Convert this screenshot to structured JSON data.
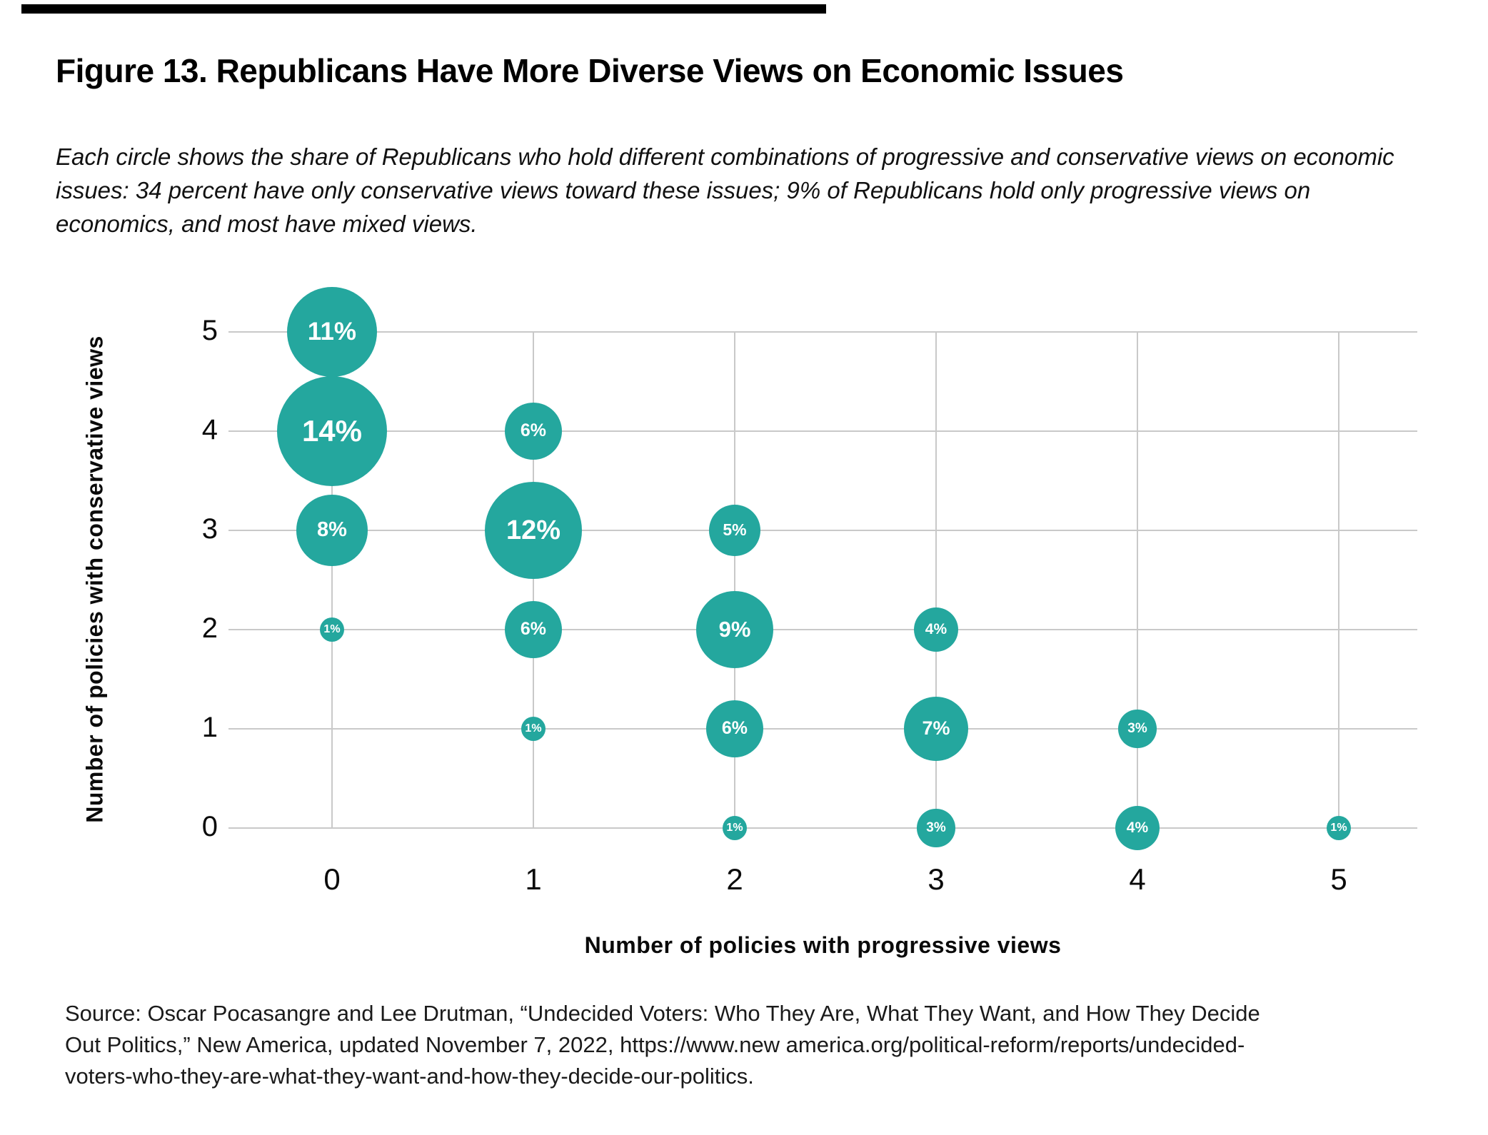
{
  "page": {
    "title": "Figure 13. Republicans Have More Diverse Views on Economic Issues",
    "subtitle_lines": [
      "Each circle shows the share of Republicans who hold different combinations of progressive and conservative views on economic",
      "issues: 34 percent have only conservative views toward these issues; 9% of Republicans hold only progressive views on",
      "economics, and most have mixed views."
    ],
    "source_lines": [
      "Source: Oscar Pocasangre and Lee Drutman, “Undecided Voters: Who They Are, What They Want, and How They Decide",
      "Out Politics,” New America, updated November 7, 2022, https://www.new america.org/political-reform/reports/undecided-",
      "voters-who-they-are-what-they-want-and-how-they-decide-our-politics."
    ]
  },
  "chart_data": {
    "type": "scatter",
    "subtype": "bubble",
    "title": "",
    "xlabel": "Number of policies with progressive views",
    "ylabel": "Number of policies with conservative views",
    "x_ticks": [
      "0",
      "1",
      "2",
      "3",
      "4",
      "5"
    ],
    "y_ticks": [
      "0",
      "1",
      "2",
      "3",
      "4",
      "5"
    ],
    "xlim": [
      0,
      5
    ],
    "ylim": [
      0,
      5
    ],
    "grid": true,
    "legend": "none",
    "value_unit": "percent of Republicans",
    "points": [
      {
        "x": 0,
        "y": 5,
        "value": 11,
        "label": "11%"
      },
      {
        "x": 0,
        "y": 4,
        "value": 14,
        "label": "14%"
      },
      {
        "x": 0,
        "y": 3,
        "value": 8,
        "label": "8%"
      },
      {
        "x": 0,
        "y": 2,
        "value": 1,
        "label": "1%"
      },
      {
        "x": 1,
        "y": 4,
        "value": 6,
        "label": "6%"
      },
      {
        "x": 1,
        "y": 3,
        "value": 12,
        "label": "12%"
      },
      {
        "x": 1,
        "y": 2,
        "value": 6,
        "label": "6%"
      },
      {
        "x": 1,
        "y": 1,
        "value": 1,
        "label": "1%"
      },
      {
        "x": 2,
        "y": 3,
        "value": 5,
        "label": "5%"
      },
      {
        "x": 2,
        "y": 2,
        "value": 9,
        "label": "9%"
      },
      {
        "x": 2,
        "y": 1,
        "value": 6,
        "label": "6%"
      },
      {
        "x": 2,
        "y": 0,
        "value": 1,
        "label": "1%"
      },
      {
        "x": 3,
        "y": 2,
        "value": 4,
        "label": "4%"
      },
      {
        "x": 3,
        "y": 1,
        "value": 7,
        "label": "7%"
      },
      {
        "x": 3,
        "y": 0,
        "value": 3,
        "label": "3%"
      },
      {
        "x": 4,
        "y": 1,
        "value": 3,
        "label": "3%"
      },
      {
        "x": 4,
        "y": 0,
        "value": 4,
        "label": "4%"
      },
      {
        "x": 5,
        "y": 0,
        "value": 1,
        "label": "1%"
      }
    ],
    "colors": {
      "bubble": "#24a79e",
      "bubble_label": "#ffffff",
      "gridline": "#c9c9c9",
      "text": "#0a0a0a"
    }
  }
}
